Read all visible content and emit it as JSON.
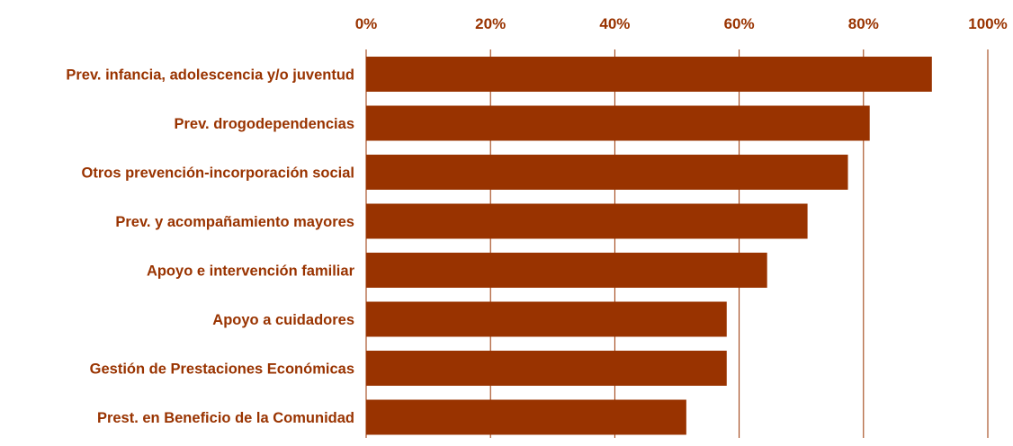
{
  "chart_data": {
    "type": "bar",
    "orientation": "horizontal",
    "categories": [
      "Prev. infancia, adolescencia y/o juventud",
      "Prev. drogodependencias",
      "Otros prevención-incorporación social",
      "Prev. y acompañamiento mayores",
      "Apoyo e intervención familiar",
      "Apoyo a cuidadores",
      "Gestión de Prestaciones Económicas",
      "Prest. en Beneficio de la Comunidad"
    ],
    "values": [
      91,
      81,
      77.5,
      71,
      64.5,
      58,
      58,
      51.5
    ],
    "xlim": [
      0,
      100
    ],
    "x_ticks": [
      "0%",
      "20%",
      "40%",
      "60%",
      "80%",
      "100%"
    ],
    "x_axis_position": "top",
    "grid": "vertical",
    "legend": "none",
    "colors": {
      "bar": "#993300",
      "text": "#993300",
      "grid": "#993300"
    }
  }
}
